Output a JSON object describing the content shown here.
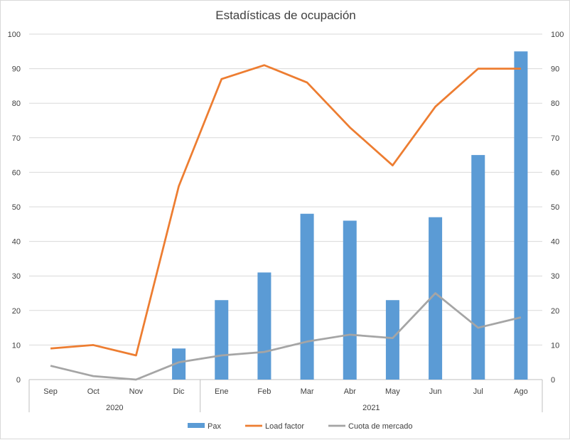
{
  "chart_data": {
    "type": "bar",
    "title": "Estadísticas de ocupación",
    "categories": [
      "Sep",
      "Oct",
      "Nov",
      "Dic",
      "Ene",
      "Feb",
      "Mar",
      "Abr",
      "May",
      "Jun",
      "Jul",
      "Ago"
    ],
    "groups": [
      {
        "label": "2020",
        "categories": [
          "Sep",
          "Oct",
          "Nov",
          "Dic"
        ]
      },
      {
        "label": "2021",
        "categories": [
          "Ene",
          "Feb",
          "Mar",
          "Abr",
          "May",
          "Jun",
          "Jul",
          "Ago"
        ]
      }
    ],
    "series": [
      {
        "name": "Pax",
        "type": "bar",
        "color": "#5b9bd5",
        "values": [
          null,
          null,
          null,
          9,
          23,
          31,
          48,
          46,
          23,
          47,
          65,
          95
        ]
      },
      {
        "name": "Load factor",
        "type": "line",
        "color": "#ed7d31",
        "values": [
          9,
          10,
          7,
          56,
          87,
          91,
          86,
          73,
          62,
          79,
          90,
          90
        ]
      },
      {
        "name": "Cuota de mercado",
        "type": "line",
        "color": "#a5a5a5",
        "values": [
          4,
          1,
          0,
          5,
          7,
          8,
          11,
          13,
          12,
          25,
          15,
          18
        ]
      }
    ],
    "ylim": [
      0,
      100
    ],
    "yticks": [
      0,
      10,
      20,
      30,
      40,
      50,
      60,
      70,
      80,
      90,
      100
    ],
    "secondary_ylim": [
      0,
      100
    ],
    "grid": true,
    "legend_position": "bottom"
  }
}
